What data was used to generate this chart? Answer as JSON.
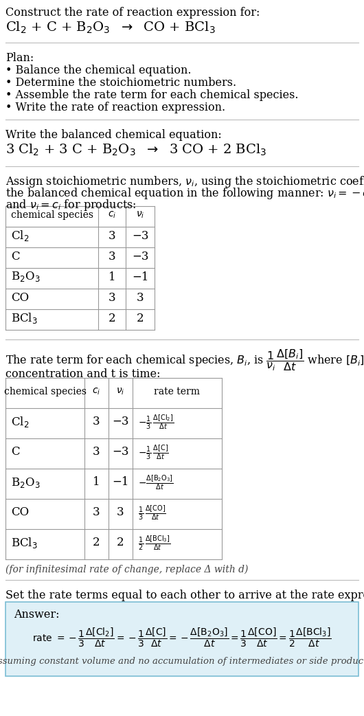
{
  "title_line1": "Construct the rate of reaction expression for:",
  "reaction_unbalanced": "Cl_2 + C + B_2O_3  →  CO + BCl_3",
  "plan_header": "Plan:",
  "plan_items": [
    "• Balance the chemical equation.",
    "• Determine the stoichiometric numbers.",
    "• Assemble the rate term for each chemical species.",
    "• Write the rate of reaction expression."
  ],
  "balanced_header": "Write the balanced chemical equation:",
  "balanced_eq": "3 Cl_2 + 3 C + B_2O_3  →  3 CO + 2 BCl_3",
  "table1_rows": [
    [
      "Cl_2",
      "3",
      "−3"
    ],
    [
      "C",
      "3",
      "−3"
    ],
    [
      "B_2O_3",
      "1",
      "−1"
    ],
    [
      "CO",
      "3",
      "3"
    ],
    [
      "BCl_3",
      "2",
      "2"
    ]
  ],
  "table2_rows": [
    [
      "Cl_2",
      "3",
      "−3"
    ],
    [
      "C",
      "3",
      "−3"
    ],
    [
      "B_2O_3",
      "1",
      "−1"
    ],
    [
      "CO",
      "3",
      "3"
    ],
    [
      "BCl_3",
      "2",
      "2"
    ]
  ],
  "infinitesimal_note": "(for infinitesimal rate of change, replace Δ with d)",
  "set_equal_text": "Set the rate terms equal to each other to arrive at the rate expression:",
  "answer_bg_color": "#dff0f7",
  "answer_border_color": "#7bbdd4",
  "bg_color": "#ffffff",
  "text_color": "#000000",
  "table_border_color": "#999999",
  "answer_label": "Answer:",
  "assume_note": "(assuming constant volume and no accumulation of intermediates or side products)"
}
